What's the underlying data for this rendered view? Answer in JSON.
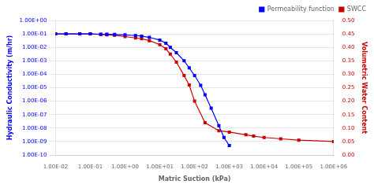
{
  "chart_data": {
    "type": "line",
    "xlabel": "Matric Suction (kPa)",
    "ylabel": "Hydraulic Conductivity (m/hr)",
    "y2label": "Volumetric Water Content",
    "log": true,
    "grid": "y",
    "legend": "upper right",
    "xlim": [
      0.01,
      1000000.0
    ],
    "xticks": [
      {
        "value": 0.01,
        "label": "1.00E-02"
      },
      {
        "value": 0.1,
        "label": "1.00E-01"
      },
      {
        "value": 1.0,
        "label": "1.00E+00"
      },
      {
        "value": 10.0,
        "label": "1.00E+01"
      },
      {
        "value": 100.0,
        "label": "1.00E+02"
      },
      {
        "value": 1000.0,
        "label": "1.00E+03"
      },
      {
        "value": 10000.0,
        "label": "1.00E+04"
      },
      {
        "value": 100000.0,
        "label": "1.00E+05"
      },
      {
        "value": 1000000.0,
        "label": "1.00E+06"
      }
    ],
    "ylim": [
      1e-10,
      1.0
    ],
    "yticks": [
      {
        "value": 1e-10,
        "label": "1.00E-10"
      },
      {
        "value": 1e-09,
        "label": "1.00E-09"
      },
      {
        "value": 1e-08,
        "label": "1.00E-08"
      },
      {
        "value": 1e-07,
        "label": "1.00E-07"
      },
      {
        "value": 1e-06,
        "label": "1.00E-06"
      },
      {
        "value": 1e-05,
        "label": "1.00E-05"
      },
      {
        "value": 0.0001,
        "label": "1.00E-04"
      },
      {
        "value": 0.001,
        "label": "1.00E-03"
      },
      {
        "value": 0.01,
        "label": "1.00E-02"
      },
      {
        "value": 0.1,
        "label": "1.00E-01"
      },
      {
        "value": 1.0,
        "label": "1.00E+00"
      }
    ],
    "y2lim": [
      0.0,
      0.5
    ],
    "y2ticks": [
      {
        "value": 0.0,
        "label": "0.00"
      },
      {
        "value": 0.05,
        "label": "0.05"
      },
      {
        "value": 0.1,
        "label": "0.10"
      },
      {
        "value": 0.15,
        "label": "0.15"
      },
      {
        "value": 0.2,
        "label": "0.20"
      },
      {
        "value": 0.25,
        "label": "0.25"
      },
      {
        "value": 0.3,
        "label": "0.30"
      },
      {
        "value": 0.35,
        "label": "0.35"
      },
      {
        "value": 0.4,
        "label": "0.40"
      },
      {
        "value": 0.45,
        "label": "0.45"
      },
      {
        "value": 0.5,
        "label": "0.50"
      }
    ],
    "series": [
      {
        "name": "Permeability function",
        "color": "#0000FF",
        "marker": "square",
        "x": [
          0.01,
          0.02,
          0.05,
          0.1,
          0.2,
          0.3,
          0.5,
          1.0,
          2.0,
          3.0,
          5.0,
          10.0,
          15.0,
          20.0,
          30.0,
          50.0,
          70.0,
          100.0,
          150.0,
          200.0,
          300.0,
          500.0,
          700.0,
          1000.0
        ],
        "values": [
          0.1,
          0.1,
          0.1,
          0.1,
          0.095,
          0.093,
          0.09,
          0.085,
          0.075,
          0.068,
          0.055,
          0.035,
          0.02,
          0.01,
          0.004,
          0.001,
          0.0003,
          8e-05,
          1.5e-05,
          3e-06,
          3e-07,
          1.5e-08,
          2e-09,
          5e-10
        ]
      },
      {
        "name": "SWCC",
        "color": "#CC0000",
        "marker": "square",
        "axis": "y2",
        "x": [
          0.01,
          0.02,
          0.05,
          0.1,
          0.2,
          0.3,
          0.5,
          1.0,
          2.0,
          3.0,
          5.0,
          10.0,
          15.0,
          20.0,
          30.0,
          50.0,
          70.0,
          100.0,
          200.0,
          500.0,
          1000.0,
          3000.0,
          5000.0,
          10000.0,
          30000.0,
          100000.0,
          1000000.0
        ],
        "values": [
          0.45,
          0.45,
          0.45,
          0.45,
          0.448,
          0.447,
          0.445,
          0.44,
          0.435,
          0.432,
          0.425,
          0.41,
          0.395,
          0.375,
          0.345,
          0.295,
          0.26,
          0.2,
          0.12,
          0.09,
          0.085,
          0.075,
          0.07,
          0.065,
          0.06,
          0.055,
          0.05
        ]
      }
    ]
  }
}
